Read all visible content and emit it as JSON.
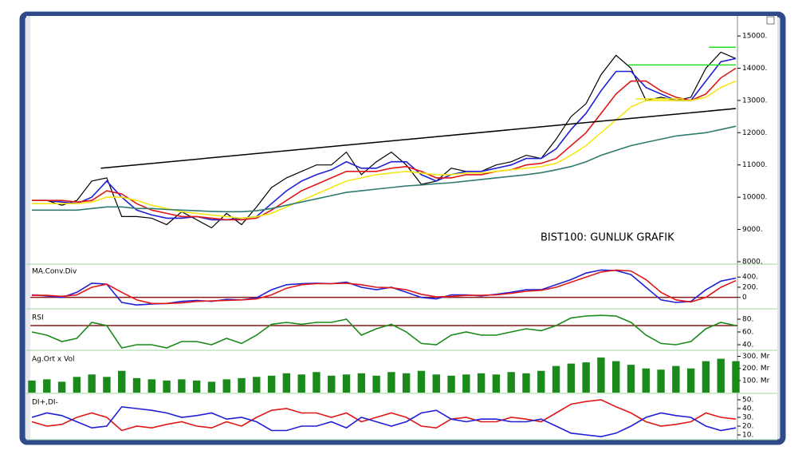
{
  "chart_data": [
    {
      "type": "line",
      "title": "BIST100: GUNLUK GRAFIK",
      "ylim": [
        7950,
        15620
      ],
      "yticks": [
        {
          "value": 15000,
          "label": "15000."
        },
        {
          "value": 14000,
          "label": "14000."
        },
        {
          "value": 13000,
          "label": "13000."
        },
        {
          "value": 12000,
          "label": "12000."
        },
        {
          "value": 11000,
          "label": "11000."
        },
        {
          "value": 10000,
          "label": "10000."
        },
        {
          "value": 9000,
          "label": "9000."
        },
        {
          "value": 8000,
          "label": "8000."
        }
      ],
      "series": [
        {
          "color": "#000000",
          "values": [
            9900,
            9900,
            9750,
            9900,
            10500,
            10600,
            9400,
            9400,
            9350,
            9150,
            9550,
            9300,
            9050,
            9500,
            9150,
            9700,
            10300,
            10600,
            10800,
            11000,
            11000,
            11400,
            10700,
            11100,
            11400,
            11000,
            10400,
            10500,
            10900,
            10800,
            10800,
            11000,
            11100,
            11300,
            11200,
            11800,
            12500,
            12900,
            13800,
            14400,
            14000,
            13000,
            13100,
            13000,
            13100,
            14000,
            14500,
            14300
          ]
        },
        {
          "color": "#1f1fd6",
          "values": [
            9900,
            9900,
            9850,
            9800,
            10000,
            10500,
            10000,
            9600,
            9450,
            9350,
            9350,
            9400,
            9300,
            9300,
            9350,
            9400,
            9800,
            10200,
            10500,
            10700,
            10850,
            11100,
            10900,
            10900,
            11100,
            11100,
            10700,
            10500,
            10700,
            10800,
            10800,
            10900,
            11000,
            11200,
            11200,
            11500,
            12100,
            12600,
            13300,
            13900,
            13900,
            13400,
            13200,
            13000,
            13000,
            13600,
            14200,
            14300
          ]
        },
        {
          "color": "#e01818",
          "values": [
            9900,
            9900,
            9900,
            9850,
            9900,
            10200,
            10100,
            9800,
            9600,
            9500,
            9400,
            9400,
            9350,
            9300,
            9300,
            9350,
            9600,
            9900,
            10200,
            10400,
            10600,
            10800,
            10800,
            10800,
            10900,
            10950,
            10800,
            10600,
            10600,
            10700,
            10700,
            10800,
            10850,
            11000,
            11050,
            11200,
            11600,
            12000,
            12600,
            13200,
            13600,
            13600,
            13300,
            13100,
            13000,
            13200,
            13700,
            14000
          ]
        },
        {
          "color": "#f5e616",
          "values": [
            9800,
            9800,
            9800,
            9800,
            9850,
            10000,
            10000,
            9900,
            9750,
            9650,
            9550,
            9500,
            9450,
            9400,
            9350,
            9400,
            9500,
            9700,
            9900,
            10100,
            10300,
            10500,
            10600,
            10700,
            10750,
            10800,
            10750,
            10700,
            10700,
            10750,
            10750,
            10800,
            10850,
            10900,
            10950,
            11050,
            11300,
            11600,
            12000,
            12400,
            12800,
            13000,
            13000,
            13000,
            13000,
            13100,
            13400,
            13600
          ]
        },
        {
          "color": "#2f7a6e",
          "values": [
            9600,
            9600,
            9600,
            9600,
            9650,
            9700,
            9700,
            9650,
            9650,
            9620,
            9600,
            9580,
            9560,
            9550,
            9550,
            9580,
            9650,
            9750,
            9850,
            9950,
            10050,
            10150,
            10200,
            10250,
            10300,
            10350,
            10380,
            10420,
            10450,
            10500,
            10550,
            10600,
            10650,
            10700,
            10760,
            10850,
            10950,
            11100,
            11300,
            11450,
            11600,
            11700,
            11800,
            11900,
            11950,
            12000,
            12100,
            12200
          ]
        }
      ],
      "trendlines": [
        {
          "color": "#000000",
          "x": [
            4.6,
            47
          ],
          "y": [
            10900,
            12750
          ]
        },
        {
          "color": "#22dd22",
          "x": [
            39.8,
            47
          ],
          "y": [
            14100,
            14100
          ]
        },
        {
          "color": "#22dd22",
          "x": [
            45.2,
            47
          ],
          "y": [
            14650,
            14650
          ]
        },
        {
          "color": "#f5e616",
          "x": [
            40.3,
            43.5
          ],
          "y": [
            13050,
            13050
          ]
        }
      ]
    },
    {
      "type": "line",
      "label": "MA.Conv.Div",
      "ylim": [
        -210,
        640
      ],
      "yticks": [
        {
          "value": 400,
          "label": "400."
        },
        {
          "value": 200,
          "label": "200."
        },
        0
      ],
      "reference_lines": [
        0
      ],
      "series": [
        {
          "color": "#1f1fd6",
          "values": [
            50,
            30,
            0,
            100,
            280,
            260,
            -100,
            -150,
            -130,
            -120,
            -80,
            -60,
            -80,
            -40,
            -50,
            -10,
            150,
            250,
            270,
            280,
            270,
            300,
            200,
            150,
            200,
            100,
            0,
            -30,
            50,
            50,
            30,
            60,
            100,
            150,
            150,
            250,
            350,
            480,
            540,
            530,
            450,
            200,
            -50,
            -100,
            -80,
            150,
            320,
            380
          ]
        },
        {
          "color": "#e01818",
          "values": [
            40,
            40,
            20,
            50,
            200,
            260,
            100,
            -50,
            -120,
            -120,
            -110,
            -80,
            -70,
            -60,
            -50,
            -30,
            50,
            180,
            250,
            270,
            270,
            280,
            250,
            200,
            190,
            150,
            60,
            10,
            20,
            40,
            40,
            50,
            80,
            120,
            140,
            200,
            300,
            400,
            500,
            540,
            520,
            350,
            100,
            -50,
            -90,
            0,
            200,
            330
          ]
        }
      ]
    },
    {
      "type": "line",
      "label": "RSI",
      "ylim": [
        32.5,
        92.5
      ],
      "yticks": [
        {
          "value": 80,
          "label": "80."
        },
        {
          "value": 60,
          "label": "60."
        },
        {
          "value": 40,
          "label": "40."
        }
      ],
      "reference_lines": [
        70
      ],
      "series": [
        {
          "color": "#1a8a1a",
          "values": [
            60,
            55,
            45,
            50,
            75,
            70,
            35,
            40,
            40,
            35,
            45,
            45,
            40,
            50,
            42,
            55,
            72,
            75,
            72,
            75,
            75,
            80,
            55,
            65,
            72,
            60,
            42,
            40,
            55,
            60,
            55,
            55,
            60,
            65,
            62,
            70,
            82,
            85,
            86,
            85,
            75,
            55,
            42,
            40,
            45,
            65,
            75,
            70
          ]
        }
      ]
    },
    {
      "type": "bar",
      "label": "Ag.Ort x Vol",
      "ylim": [
        0,
        330
      ],
      "color": "#1a8a1a",
      "yticks": [
        {
          "value": 300,
          "label": "300. Mr"
        },
        {
          "value": 200,
          "label": "200. Mr"
        },
        {
          "value": 100,
          "label": "100. Mr"
        }
      ],
      "values": [
        100,
        110,
        90,
        130,
        150,
        130,
        180,
        120,
        110,
        100,
        110,
        100,
        90,
        110,
        120,
        130,
        140,
        160,
        150,
        170,
        140,
        150,
        160,
        140,
        170,
        160,
        180,
        150,
        140,
        150,
        160,
        150,
        170,
        160,
        180,
        220,
        240,
        250,
        290,
        260,
        230,
        200,
        190,
        220,
        200,
        260,
        280,
        260
      ]
    },
    {
      "type": "line",
      "label": "DI+,DI-",
      "ylim": [
        5.5,
        54.5
      ],
      "yticks": [
        {
          "value": 50,
          "label": "50."
        },
        {
          "value": 40,
          "label": "40."
        },
        {
          "value": 30,
          "label": "30."
        },
        {
          "value": 20,
          "label": "20."
        },
        {
          "value": 10,
          "label": "10."
        }
      ],
      "series": [
        {
          "color": "#e01818",
          "values": [
            25,
            20,
            22,
            30,
            35,
            30,
            15,
            20,
            18,
            22,
            25,
            20,
            18,
            25,
            20,
            30,
            38,
            40,
            35,
            35,
            30,
            35,
            25,
            30,
            35,
            30,
            20,
            18,
            28,
            30,
            25,
            25,
            30,
            28,
            25,
            35,
            45,
            48,
            50,
            42,
            35,
            25,
            20,
            22,
            25,
            35,
            30,
            28
          ]
        },
        {
          "color": "#1f1fd6",
          "values": [
            30,
            35,
            32,
            25,
            18,
            20,
            42,
            40,
            38,
            35,
            30,
            32,
            35,
            28,
            30,
            25,
            15,
            15,
            20,
            20,
            25,
            18,
            30,
            25,
            20,
            25,
            35,
            38,
            28,
            25,
            28,
            28,
            25,
            25,
            28,
            20,
            12,
            10,
            8,
            12,
            20,
            30,
            35,
            32,
            30,
            20,
            15,
            18
          ]
        }
      ]
    }
  ]
}
